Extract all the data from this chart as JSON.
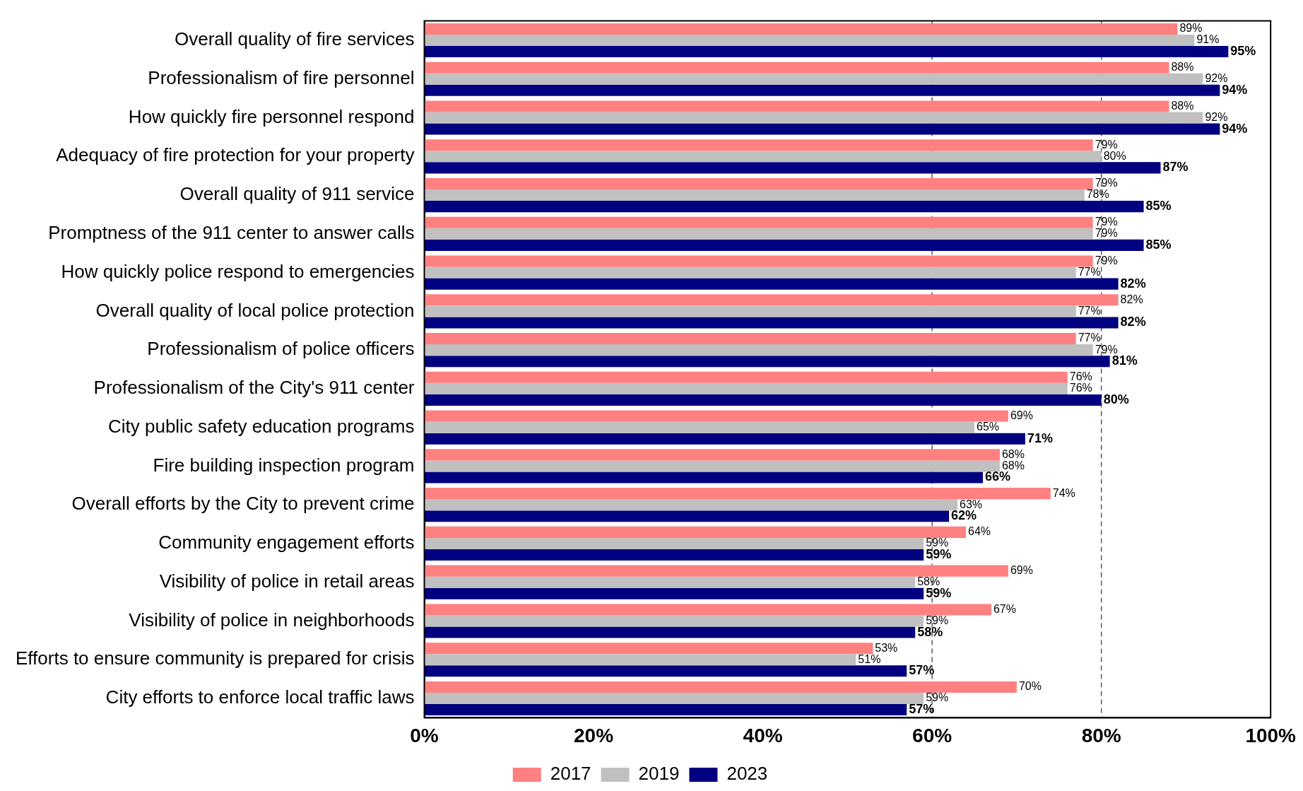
{
  "chart_data": {
    "type": "bar",
    "orientation": "horizontal",
    "categories": [
      "Overall quality of fire services",
      "Professionalism of fire personnel",
      "How quickly fire personnel respond",
      "Adequacy of fire protection for your property",
      "Overall quality of 911 service",
      "Promptness of the 911 center to answer calls",
      "How quickly police respond to emergencies",
      "Overall quality of local police protection",
      "Professionalism of police officers",
      "Professionalism of the City's 911 center",
      "City public safety education programs",
      "Fire building inspection program",
      "Overall efforts by the City to prevent crime",
      "Community engagement efforts",
      "Visibility of police in retail areas",
      "Visibility of police in neighborhoods",
      "Efforts to ensure community is prepared for crisis",
      "City efforts to enforce local traffic laws"
    ],
    "series": [
      {
        "name": "2017",
        "color": "#ff8080",
        "values": [
          89,
          88,
          88,
          79,
          79,
          79,
          79,
          82,
          77,
          76,
          69,
          68,
          74,
          64,
          69,
          67,
          53,
          70
        ],
        "value_labels": [
          "89%",
          "88%",
          "88%",
          "79%",
          "79%",
          "79%",
          "79%",
          "82%",
          "77%",
          "76%",
          "69%",
          "68%",
          "74%",
          "64%",
          "69%",
          "67%",
          "53%",
          "70%"
        ]
      },
      {
        "name": "2019",
        "color": "#c0c0c0",
        "values": [
          91,
          92,
          92,
          80,
          78,
          79,
          77,
          77,
          79,
          76,
          65,
          68,
          63,
          59,
          58,
          59,
          51,
          59
        ],
        "value_labels": [
          "91%",
          "92%",
          "92%",
          "80%",
          "78%",
          "79%",
          "77%",
          "77%",
          "79%",
          "76%",
          "65%",
          "68%",
          "63%",
          "59%",
          "58%",
          "59%",
          "51%",
          "59%"
        ]
      },
      {
        "name": "2023",
        "color": "#000080",
        "values": [
          95,
          94,
          94,
          87,
          85,
          85,
          82,
          82,
          81,
          80,
          71,
          66,
          62,
          59,
          59,
          58,
          57,
          57
        ],
        "value_labels": [
          "95%",
          "94%",
          "94%",
          "87%",
          "85%",
          "85%",
          "82%",
          "82%",
          "81%",
          "80%",
          "71%",
          "66%",
          "62%",
          "59%",
          "59%",
          "58%",
          "57%",
          "57%"
        ]
      }
    ],
    "xlim": [
      0,
      100
    ],
    "xticks": [
      {
        "value": 0,
        "label": "0%"
      },
      {
        "value": 20,
        "label": "20%"
      },
      {
        "value": 40,
        "label": "40%"
      },
      {
        "value": 60,
        "label": "60%"
      },
      {
        "value": 80,
        "label": "80%"
      },
      {
        "value": 100,
        "label": "100%"
      }
    ],
    "ref_lines": [
      {
        "axis": "x",
        "value": 60,
        "color": "#595959",
        "line_style": "dashed"
      },
      {
        "axis": "x",
        "value": 80,
        "color": "#595959",
        "line_style": "dashed"
      }
    ],
    "grid": false,
    "legend": "bottom"
  }
}
